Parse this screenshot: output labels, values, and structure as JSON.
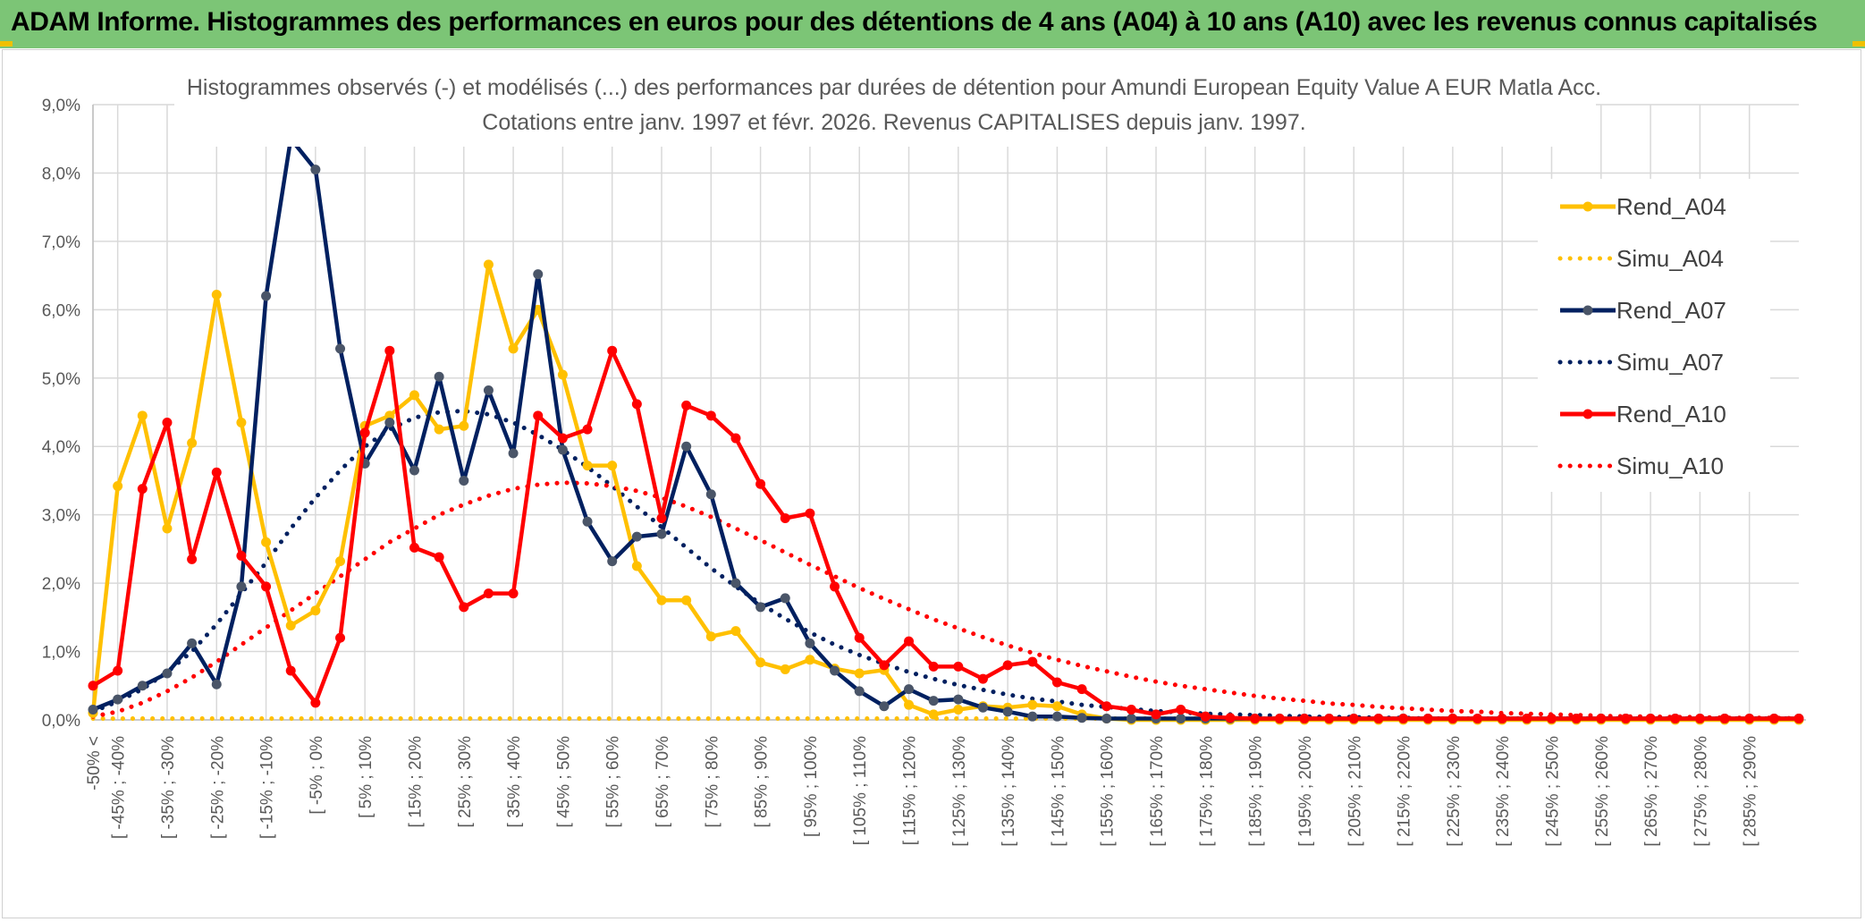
{
  "banner": {
    "title": "ADAM Informe. Histogrammes des performances en euros pour des détentions de 4 ans (A04) à 10 ans (A10) avec les revenus connus capitalisés",
    "background": "#7cc576"
  },
  "chart_data": {
    "type": "line",
    "title_line1": "Histogrammes observés (-) et modélisés (...) des performances par durées de détention pour Amundi European Equity Value A EUR Matla Acc.",
    "title_line2": "Cotations entre janv. 1997 et févr. 2026. Revenus CAPITALISES depuis janv. 1997.",
    "ylim": [
      0,
      9
    ],
    "yticks": [
      "0,0%",
      "1,0%",
      "2,0%",
      "3,0%",
      "4,0%",
      "5,0%",
      "6,0%",
      "7,0%",
      "8,0%",
      "9,0%"
    ],
    "x_labels": [
      "-50% <",
      "[ -45% ; -40%",
      "[ -35% ; -30%",
      "[ -25% ; -20%",
      "[ -15% ; -10%",
      "[ -5% ; 0%",
      "[ 5% ; 10%",
      "[ 15% ; 20%",
      "[ 25% ; 30%",
      "[ 35% ; 40%",
      "[ 45% ; 50%",
      "[ 55% ; 60%",
      "[ 65% ; 70%",
      "[ 75% ; 80%",
      "[ 85% ; 90%",
      "[ 95% ; 100%",
      "[ 105% ; 110%",
      "[ 115% ; 120%",
      "[ 125% ; 130%",
      "[ 135% ; 140%",
      "[ 145% ; 150%",
      "[ 155% ; 160%",
      "[ 165% ; 170%",
      "[ 175% ; 180%",
      "[ 185% ; 190%",
      "[ 195% ; 200%",
      "[ 205% ; 210%",
      "[ 215% ; 220%",
      "[ 225% ; 230%",
      "[ 235% ; 240%",
      "[ 245% ; 250%",
      "[ 255% ; 260%",
      "[ 265% ; 270%",
      "[ 275% ; 280%",
      "[ 285% ; 290%"
    ],
    "n_bins": 70,
    "series": [
      {
        "name": "Rend_A04",
        "style": "solid",
        "color": "#ffc000",
        "marker_color": "#ffc000",
        "values": [
          0.1,
          3.42,
          4.45,
          2.8,
          4.05,
          6.22,
          4.35,
          2.6,
          1.38,
          1.6,
          2.32,
          4.3,
          4.45,
          4.75,
          4.25,
          4.3,
          6.66,
          5.43,
          6.0,
          5.05,
          3.72,
          3.72,
          2.25,
          1.75,
          1.75,
          1.22,
          1.3,
          0.84,
          0.74,
          0.88,
          0.75,
          0.68,
          0.73,
          0.22,
          0.08,
          0.15,
          0.2,
          0.18,
          0.22,
          0.2,
          0.08,
          0.02,
          0,
          0,
          0,
          0,
          0,
          0,
          0,
          0,
          0,
          0,
          0,
          0,
          0,
          0,
          0,
          0,
          0,
          0,
          0,
          0,
          0,
          0,
          0,
          0,
          0,
          0,
          0,
          0
        ]
      },
      {
        "name": "Simu_A04",
        "style": "dotted",
        "color": "#ffc000",
        "values": [
          0.02,
          0.02,
          0.02,
          0.02,
          0.02,
          0.02,
          0.02,
          0.02,
          0.02,
          0.02,
          0.02,
          0.02,
          0.02,
          0.02,
          0.02,
          0.02,
          0.02,
          0.02,
          0.02,
          0.02,
          0.02,
          0.02,
          0.02,
          0.02,
          0.02,
          0.02,
          0.02,
          0.02,
          0.02,
          0.02,
          0.02,
          0.02,
          0.02,
          0.02,
          0.02,
          0.02,
          0.02,
          0.02,
          0.02,
          0.02,
          0.02,
          0.02,
          0.02,
          0.02,
          0.02,
          0.02,
          0.02,
          0.02,
          0.02,
          0.02,
          0.02,
          0.02,
          0.02,
          0.02,
          0.02,
          0.02,
          0.02,
          0.02,
          0.02,
          0.02,
          0.02,
          0.02,
          0.02,
          0.02,
          0.02,
          0.02,
          0.02,
          0.02,
          0.02,
          0.02
        ]
      },
      {
        "name": "Rend_A07",
        "style": "solid",
        "color": "#002060",
        "marker_color": "#4a5568",
        "values": [
          0.15,
          0.3,
          0.5,
          0.68,
          1.12,
          0.52,
          1.95,
          6.2,
          8.5,
          8.05,
          5.43,
          3.75,
          4.35,
          3.65,
          5.02,
          3.5,
          4.82,
          3.9,
          6.52,
          3.95,
          2.9,
          2.32,
          2.68,
          2.72,
          4.0,
          3.3,
          2.0,
          1.65,
          1.78,
          1.12,
          0.72,
          0.42,
          0.2,
          0.45,
          0.28,
          0.3,
          0.18,
          0.12,
          0.05,
          0.05,
          0.03,
          0.02,
          0.02,
          0.02,
          0.02,
          0.02,
          0.02,
          0.02,
          0.02,
          0.02,
          0.02,
          0.02,
          0.02,
          0.02,
          0.02,
          0.02,
          0.02,
          0.02,
          0.02,
          0.02,
          0.02,
          0.02,
          0.02,
          0.02,
          0.02,
          0.02,
          0.02,
          0.02,
          0.02,
          0.02
        ]
      },
      {
        "name": "Simu_A07",
        "style": "dotted",
        "color": "#002060",
        "values": [
          0.12,
          0.27,
          0.45,
          0.7,
          1.0,
          1.4,
          1.85,
          2.3,
          2.8,
          3.25,
          3.65,
          4.0,
          4.25,
          4.42,
          4.5,
          4.52,
          4.47,
          4.35,
          4.17,
          3.95,
          3.7,
          3.42,
          3.12,
          2.82,
          2.52,
          2.22,
          1.95,
          1.7,
          1.48,
          1.28,
          1.1,
          0.95,
          0.82,
          0.7,
          0.6,
          0.51,
          0.44,
          0.37,
          0.31,
          0.27,
          0.22,
          0.19,
          0.16,
          0.13,
          0.11,
          0.09,
          0.08,
          0.07,
          0.06,
          0.05,
          0.04,
          0.04,
          0.03,
          0.03,
          0.02,
          0.02,
          0.02,
          0.02,
          0.02,
          0.02,
          0.02,
          0.02,
          0.02,
          0.02,
          0.02,
          0.02,
          0.02,
          0.02,
          0.02,
          0.02
        ]
      },
      {
        "name": "Rend_A10",
        "style": "solid",
        "color": "#ff0000",
        "marker_color": "#ff0000",
        "values": [
          0.5,
          0.72,
          3.38,
          4.35,
          2.35,
          3.62,
          2.4,
          1.95,
          0.72,
          0.25,
          1.2,
          4.2,
          5.4,
          2.52,
          2.38,
          1.65,
          1.85,
          1.85,
          4.45,
          4.12,
          4.25,
          5.4,
          4.62,
          2.95,
          4.6,
          4.45,
          4.12,
          3.45,
          2.95,
          3.02,
          1.95,
          1.2,
          0.8,
          1.15,
          0.78,
          0.78,
          0.6,
          0.8,
          0.85,
          0.55,
          0.45,
          0.2,
          0.15,
          0.08,
          0.15,
          0.05,
          0.03,
          0.02,
          0.02,
          0.02,
          0.02,
          0.02,
          0.02,
          0.02,
          0.02,
          0.02,
          0.02,
          0.02,
          0.02,
          0.02,
          0.02,
          0.02,
          0.02,
          0.02,
          0.02,
          0.02,
          0.02,
          0.02,
          0.02,
          0.02
        ]
      },
      {
        "name": "Simu_A10",
        "style": "dotted",
        "color": "#ff0000",
        "values": [
          0.05,
          0.12,
          0.25,
          0.42,
          0.62,
          0.85,
          1.1,
          1.35,
          1.6,
          1.85,
          2.1,
          2.35,
          2.6,
          2.8,
          3.0,
          3.15,
          3.28,
          3.38,
          3.44,
          3.47,
          3.46,
          3.42,
          3.35,
          3.25,
          3.12,
          2.97,
          2.8,
          2.63,
          2.45,
          2.27,
          2.1,
          1.93,
          1.77,
          1.62,
          1.47,
          1.34,
          1.21,
          1.09,
          0.98,
          0.88,
          0.79,
          0.71,
          0.63,
          0.56,
          0.5,
          0.45,
          0.4,
          0.35,
          0.31,
          0.28,
          0.24,
          0.22,
          0.19,
          0.17,
          0.15,
          0.13,
          0.12,
          0.1,
          0.09,
          0.08,
          0.07,
          0.06,
          0.05,
          0.05,
          0.04,
          0.04,
          0.03,
          0.03,
          0.03,
          0.02
        ]
      }
    ],
    "legend_position": "right"
  }
}
